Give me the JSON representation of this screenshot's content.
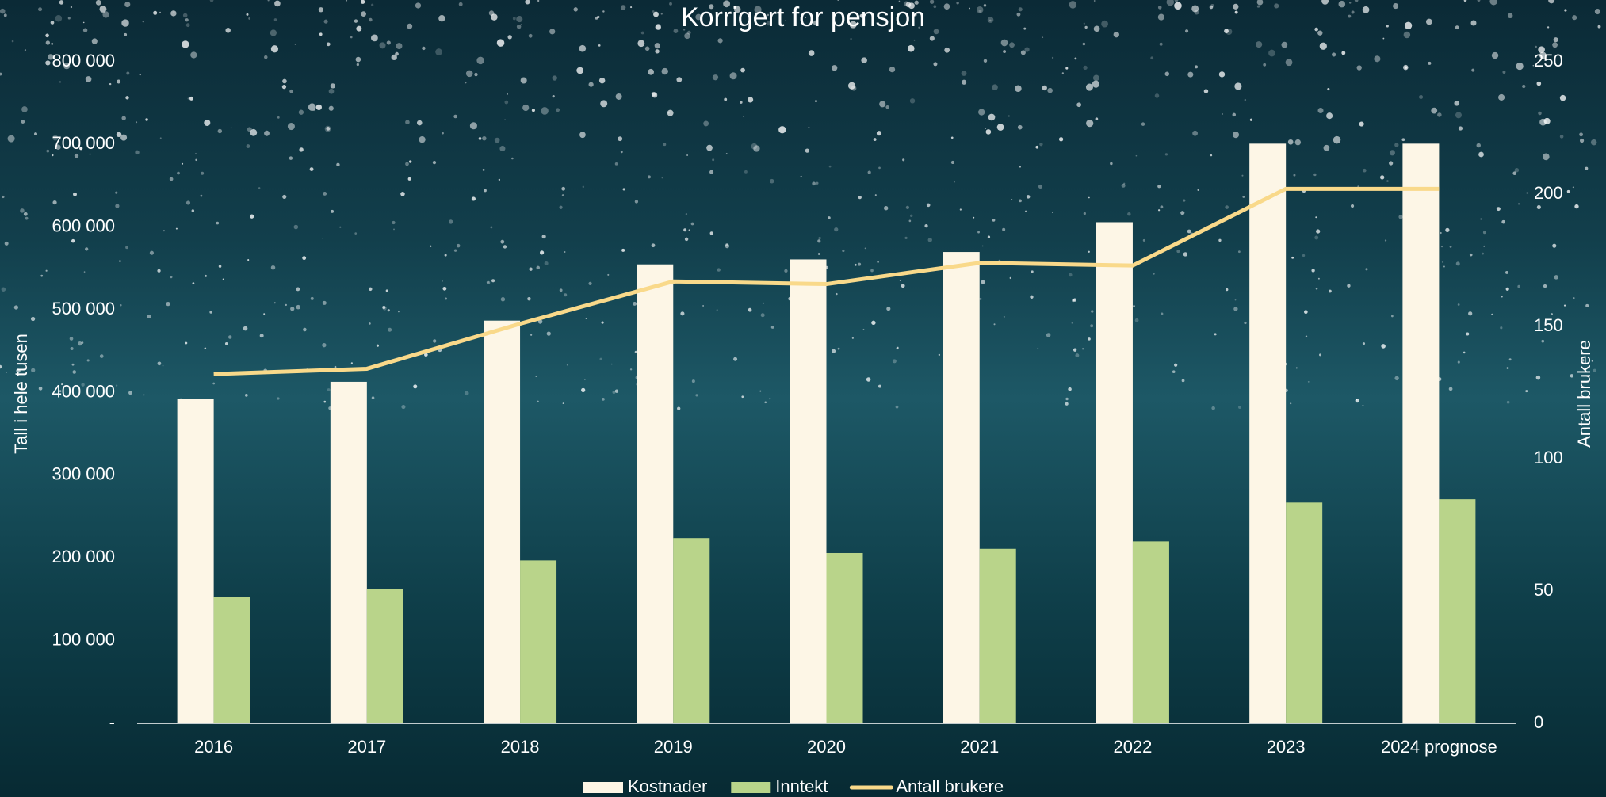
{
  "chart_data": {
    "type": "bar-line",
    "title": "Korrigert for pensjon",
    "y_label": "Tall i hele tusen",
    "y2_label": "Antall brukere",
    "categories": [
      "2016",
      "2017",
      "2018",
      "2019",
      "2020",
      "2021",
      "2022",
      "2023",
      "2024 prognose"
    ],
    "series": [
      {
        "name": "Kostnader",
        "type": "bar",
        "color": "#fdf6e6",
        "values": [
          392000,
          413000,
          487000,
          555000,
          561000,
          570000,
          606000,
          701000,
          701000
        ]
      },
      {
        "name": "Inntekt",
        "type": "bar",
        "color": "#b9d48a",
        "values": [
          153000,
          162000,
          197000,
          224000,
          206000,
          211000,
          220000,
          267000,
          271000
        ]
      },
      {
        "name": "Antall brukere",
        "type": "line",
        "axis": "y2",
        "color": "#f9d98a",
        "values": [
          132,
          134,
          151,
          167,
          166,
          174,
          173,
          202,
          202
        ]
      }
    ],
    "ylim": [
      0,
      800000
    ],
    "yticks": [
      {
        "value": 0,
        "label": "-"
      },
      {
        "value": 100000,
        "label": "100 000"
      },
      {
        "value": 200000,
        "label": "200 000"
      },
      {
        "value": 300000,
        "label": "300 000"
      },
      {
        "value": 400000,
        "label": "400 000"
      },
      {
        "value": 500000,
        "label": "500 000"
      },
      {
        "value": 600000,
        "label": "600 000"
      },
      {
        "value": 700000,
        "label": "700 000"
      },
      {
        "value": 800000,
        "label": "800 000"
      }
    ],
    "y2lim": [
      0,
      250
    ],
    "y2ticks": [
      0,
      50,
      100,
      150,
      200,
      250
    ],
    "legend": "bottom"
  }
}
